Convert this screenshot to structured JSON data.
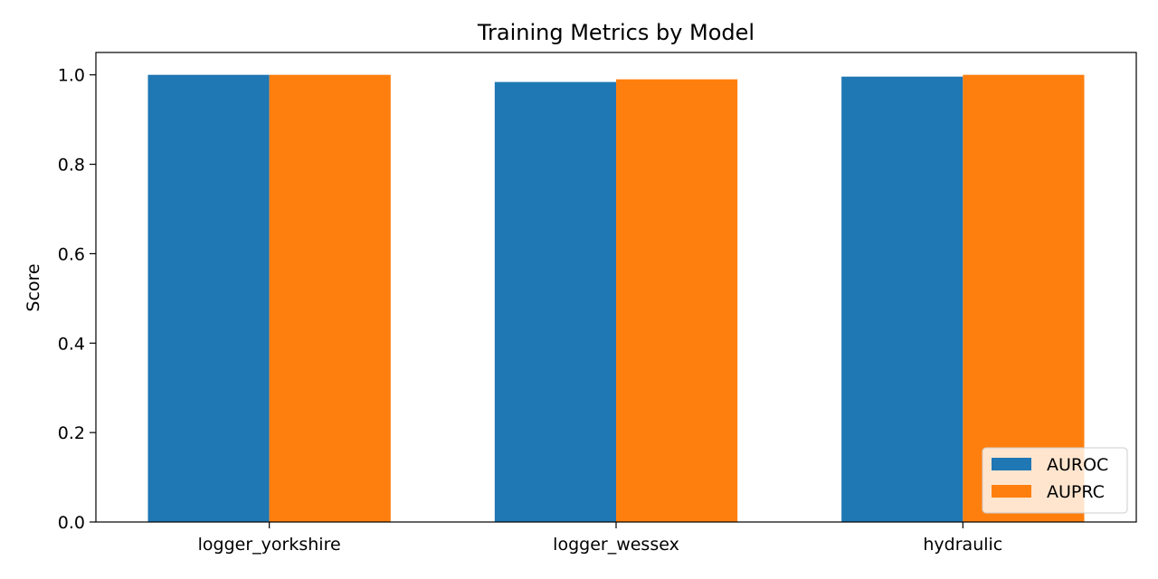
{
  "chart_data": {
    "type": "bar",
    "title": "Training Metrics by Model",
    "xlabel": "",
    "ylabel": "Score",
    "categories": [
      "logger_yorkshire",
      "logger_wessex",
      "hydraulic"
    ],
    "series": [
      {
        "name": "AUROC",
        "values": [
          1.0,
          0.984,
          0.996
        ],
        "color": "#1f77b4"
      },
      {
        "name": "AUPRC",
        "values": [
          1.0,
          0.99,
          1.0
        ],
        "color": "#ff7f0e"
      }
    ],
    "ylim": [
      0,
      1.05
    ],
    "yticks": [
      "0.0",
      "0.2",
      "0.4",
      "0.6",
      "0.8",
      "1.0"
    ],
    "legend_position": "bottom-right",
    "grid": false
  }
}
